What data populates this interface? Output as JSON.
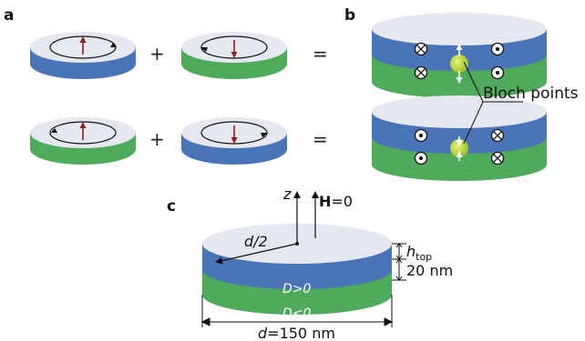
{
  "panels": {
    "a": "a",
    "b": "b",
    "c": "c"
  },
  "operators": {
    "plus": "+",
    "equals": "="
  },
  "colors": {
    "blue_layer": "#4a74b8",
    "green_layer": "#4faa5b",
    "disk_top": "#e6e8ef",
    "moment_arrow": "#8a1e1e",
    "bloch_point": "#b6d62e"
  },
  "panel_b": {
    "callout": "Bloch points"
  },
  "panel_c": {
    "z_axis": "z",
    "field_bold": "H",
    "field_rest": "=0",
    "radius_label": "d/2",
    "h_top_main": "h",
    "h_top_sub": "top",
    "thickness": "20 nm",
    "layer_top": "D>0",
    "layer_bottom": "D<0",
    "diameter_it": "d",
    "diameter_rest": "=150 nm"
  }
}
